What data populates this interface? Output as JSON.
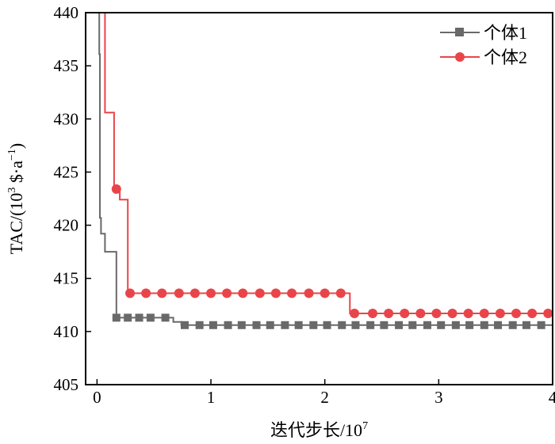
{
  "chart_data": {
    "type": "line",
    "title": "",
    "xlabel": "迭代步长/10",
    "xlabel_exponent": "7",
    "ylabel": "TAC/(10",
    "ylabel_exponent": "3",
    "ylabel_suffix": " $·a",
    "ylabel_suffix_exponent": "−1",
    "ylabel_close": ")",
    "xlim": [
      -0.1,
      4.0
    ],
    "ylim": [
      405,
      440
    ],
    "x_ticks": [
      0,
      1,
      2,
      3,
      4
    ],
    "y_ticks": [
      405,
      410,
      415,
      420,
      425,
      430,
      435,
      440
    ],
    "grid": false,
    "legend_position": "top-right",
    "series": [
      {
        "name": "个体1",
        "color": "#696969",
        "marker": "square",
        "step_points": [
          [
            0.02,
            440
          ],
          [
            0.02,
            436.1
          ],
          [
            0.025,
            436.1
          ],
          [
            0.025,
            420.7
          ],
          [
            0.035,
            420.7
          ],
          [
            0.035,
            419.2
          ],
          [
            0.07,
            419.2
          ],
          [
            0.07,
            417.5
          ],
          [
            0.17,
            417.5
          ],
          [
            0.17,
            411.3
          ],
          [
            0.67,
            411.3
          ],
          [
            0.67,
            410.9
          ],
          [
            0.74,
            410.9
          ],
          [
            0.74,
            410.6
          ],
          [
            4.0,
            410.6
          ]
        ],
        "marker_x": [
          0.17,
          0.27,
          0.37,
          0.47,
          0.6,
          0.77,
          0.9,
          1.02,
          1.15,
          1.27,
          1.4,
          1.52,
          1.65,
          1.77,
          1.9,
          2.02,
          2.15,
          2.27,
          2.4,
          2.52,
          2.65,
          2.77,
          2.9,
          3.02,
          3.15,
          3.27,
          3.4,
          3.52,
          3.65,
          3.77,
          3.9
        ]
      },
      {
        "name": "个体2",
        "color": "#e8454a",
        "marker": "circle",
        "step_points": [
          [
            0.07,
            440
          ],
          [
            0.07,
            430.6
          ],
          [
            0.15,
            430.6
          ],
          [
            0.15,
            423.4
          ],
          [
            0.2,
            423.4
          ],
          [
            0.2,
            422.4
          ],
          [
            0.27,
            422.4
          ],
          [
            0.27,
            413.6
          ],
          [
            2.22,
            413.6
          ],
          [
            2.22,
            411.7
          ],
          [
            4.0,
            411.7
          ]
        ],
        "marker_x": [
          0.17,
          0.29,
          0.43,
          0.57,
          0.72,
          0.86,
          1.0,
          1.14,
          1.28,
          1.43,
          1.57,
          1.71,
          1.86,
          2.0,
          2.14,
          2.26,
          2.42,
          2.56,
          2.7,
          2.84,
          2.98,
          3.12,
          3.26,
          3.4,
          3.54,
          3.68,
          3.82,
          3.96
        ]
      }
    ]
  }
}
